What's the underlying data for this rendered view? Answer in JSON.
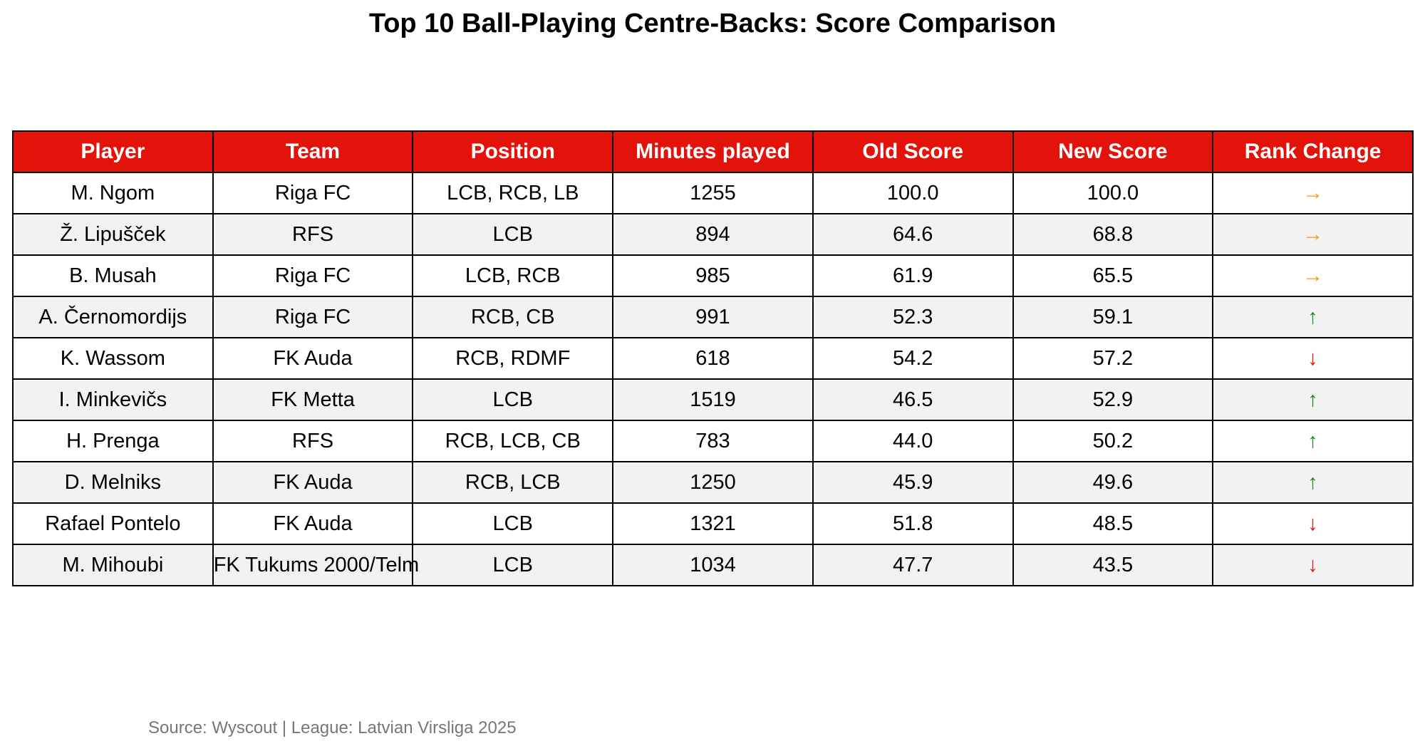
{
  "chart_data": {
    "type": "table",
    "title": "Top 10 Ball-Playing Centre-Backs: Score Comparison",
    "columns": [
      "Player",
      "Team",
      "Position",
      "Minutes played",
      "Old Score",
      "New Score",
      "Rank Change"
    ],
    "rows": [
      {
        "player": "M. Ngom",
        "team": "Riga FC",
        "position": "LCB, RCB, LB",
        "minutes": "1255",
        "old_score": "100.0",
        "new_score": "100.0",
        "rank_change": "→",
        "rank_change_icon": "arrow-right-icon",
        "rank_change_color": "#f39c12"
      },
      {
        "player": "Ž. Lipušček",
        "team": "RFS",
        "position": "LCB",
        "minutes": "894",
        "old_score": "64.6",
        "new_score": "68.8",
        "rank_change": "→",
        "rank_change_icon": "arrow-right-icon",
        "rank_change_color": "#f39c12"
      },
      {
        "player": "B. Musah",
        "team": "Riga FC",
        "position": "LCB, RCB",
        "minutes": "985",
        "old_score": "61.9",
        "new_score": "65.5",
        "rank_change": "→",
        "rank_change_icon": "arrow-right-icon",
        "rank_change_color": "#f39c12"
      },
      {
        "player": "A. Černomordijs",
        "team": "Riga FC",
        "position": "RCB, CB",
        "minutes": "991",
        "old_score": "52.3",
        "new_score": "59.1",
        "rank_change": "↑",
        "rank_change_icon": "arrow-up-icon",
        "rank_change_color": "#1a8a1a"
      },
      {
        "player": "K. Wassom",
        "team": "FK Auda",
        "position": "RCB, RDMF",
        "minutes": "618",
        "old_score": "54.2",
        "new_score": "57.2",
        "rank_change": "↓",
        "rank_change_icon": "arrow-down-icon",
        "rank_change_color": "#e3120b"
      },
      {
        "player": "I. Minkevičs",
        "team": "FK Metta",
        "position": "LCB",
        "minutes": "1519",
        "old_score": "46.5",
        "new_score": "52.9",
        "rank_change": "↑",
        "rank_change_icon": "arrow-up-icon",
        "rank_change_color": "#1a8a1a"
      },
      {
        "player": "H. Prenga",
        "team": "RFS",
        "position": "RCB, LCB, CB",
        "minutes": "783",
        "old_score": "44.0",
        "new_score": "50.2",
        "rank_change": "↑",
        "rank_change_icon": "arrow-up-icon",
        "rank_change_color": "#1a8a1a"
      },
      {
        "player": "D. Melniks",
        "team": "FK Auda",
        "position": "RCB, LCB",
        "minutes": "1250",
        "old_score": "45.9",
        "new_score": "49.6",
        "rank_change": "↑",
        "rank_change_icon": "arrow-up-icon",
        "rank_change_color": "#1a8a1a"
      },
      {
        "player": "Rafael Pontelo",
        "team": "FK Auda",
        "position": "LCB",
        "minutes": "1321",
        "old_score": "51.8",
        "new_score": "48.5",
        "rank_change": "↓",
        "rank_change_icon": "arrow-down-icon",
        "rank_change_color": "#e3120b"
      },
      {
        "player": "M. Mihoubi",
        "team": "FK Tukums 2000/Telm",
        "position": "LCB",
        "minutes": "1034",
        "old_score": "47.7",
        "new_score": "43.5",
        "rank_change": "↓",
        "rank_change_icon": "arrow-down-icon",
        "rank_change_color": "#e3120b"
      }
    ],
    "source": "Source: Wyscout | League: Latvian Virsliga 2025"
  },
  "colors": {
    "header_background": "#e3120b",
    "header_text": "#ffffff",
    "row_alt_background": "#f2f2f2",
    "source_text": "#777777"
  }
}
